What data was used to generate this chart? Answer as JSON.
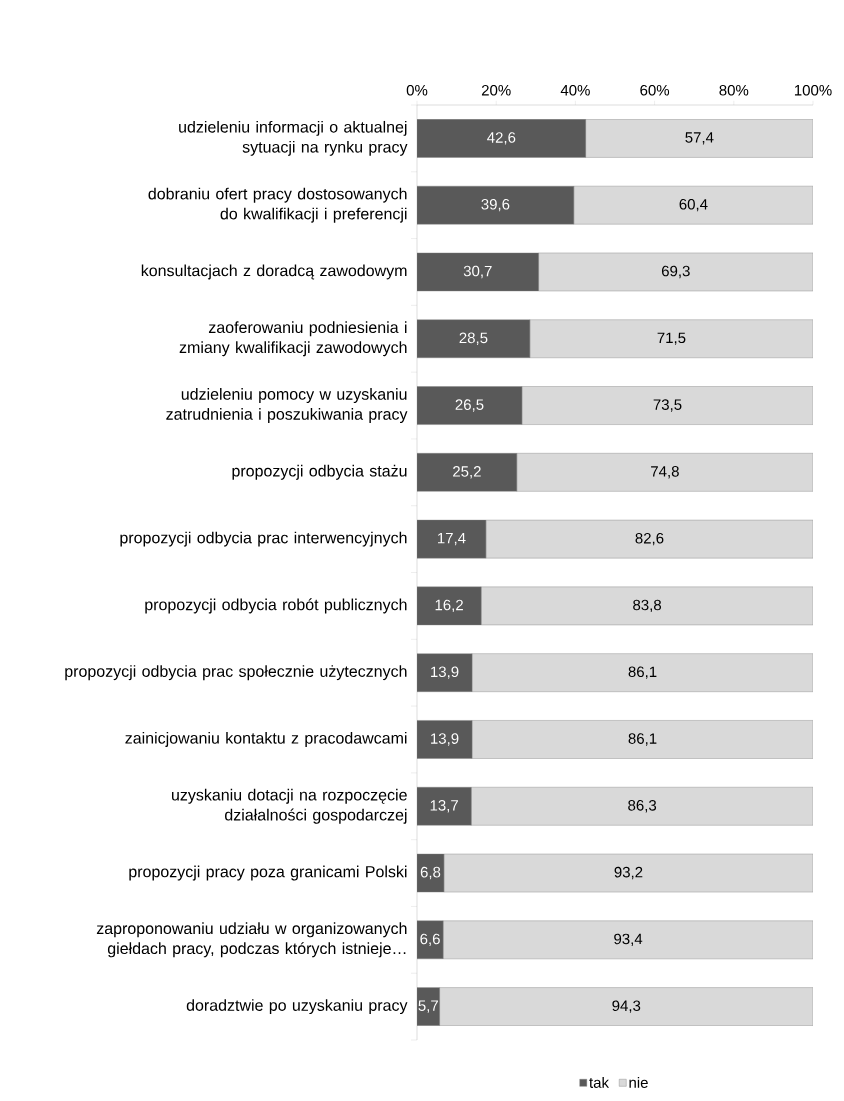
{
  "chart_data": {
    "type": "bar",
    "orientation": "horizontal",
    "stacked": true,
    "legend": "bottom",
    "grid": false,
    "categories": [
      "udzieleniu informacji o aktualnej sytuacji na rynku pracy",
      "dobraniu ofert pracy dostosowanych do kwalifikacji i preferencji",
      "konsultacjach z doradcą zawodowym",
      "zaoferowaniu podniesienia i zmiany kwalifikacji zawodowych",
      "udzieleniu pomocy w uzyskaniu zatrudnienia i poszukiwania pracy",
      "propozycji odbycia stażu",
      "propozycji odbycia prac interwencyjnych",
      "propozycji odbycia robót publicznych",
      "propozycji odbycia prac społecznie użytecznych",
      "zainicjowaniu kontaktu z pracodawcami",
      "uzyskaniu dotacji na rozpoczęcie działalności gospodarczej",
      "propozycji pracy poza granicami Polski",
      "zaproponowaniu udziału w organizowanych giełdach pracy, podczas których istnieje…",
      "doradztwie po uzyskaniu pracy"
    ],
    "series": [
      {
        "name": "tak",
        "color": "#595959",
        "values": [
          42.6,
          39.6,
          30.7,
          28.5,
          26.5,
          25.2,
          17.4,
          16.2,
          13.9,
          13.9,
          13.7,
          6.8,
          6.6,
          5.7
        ],
        "value_labels": [
          "42,6",
          "39,6",
          "30,7",
          "28,5",
          "26,5",
          "25,2",
          "17,4",
          "16,2",
          "13,9",
          "13,9",
          "13,7",
          "6,8",
          "6,6",
          "5,7"
        ]
      },
      {
        "name": "nie",
        "color": "#d9d9d9",
        "values": [
          57.4,
          60.4,
          69.3,
          71.5,
          73.5,
          74.8,
          82.6,
          83.8,
          86.1,
          86.1,
          86.3,
          93.2,
          93.4,
          94.3
        ],
        "value_labels": [
          "57,4",
          "60,4",
          "69,3",
          "71,5",
          "73,5",
          "74,8",
          "82,6",
          "83,8",
          "86,1",
          "86,1",
          "86,3",
          "93,2",
          "93,4",
          "94,3"
        ]
      }
    ],
    "xlim": [
      0,
      100
    ],
    "xticks": [
      {
        "value": 0,
        "label": "0%"
      },
      {
        "value": 20,
        "label": "20%"
      },
      {
        "value": 40,
        "label": "40%"
      },
      {
        "value": 60,
        "label": "60%"
      },
      {
        "value": 80,
        "label": "80%"
      },
      {
        "value": 100,
        "label": "100%"
      }
    ]
  }
}
